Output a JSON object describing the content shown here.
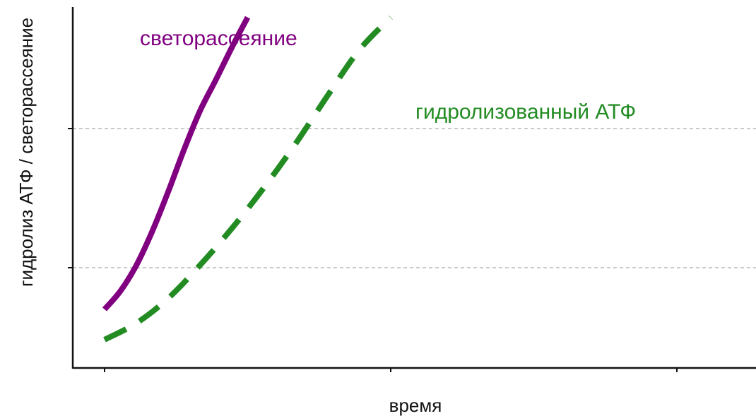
{
  "chart_data": {
    "type": "line",
    "title": "",
    "xlabel": "время",
    "ylabel": "гидролиз АТФ / светорассеяние",
    "grid": "horizontal dashed",
    "colors": {
      "light_scattering": "#800080",
      "hydrolyzed_atp": "#228B22",
      "axis": "#111111",
      "grid": "#aaaaaa"
    },
    "series": [
      {
        "name": "светорассеяние",
        "style": "solid",
        "x": [
          0,
          0.5,
          1,
          1.5,
          2,
          2.5,
          3,
          3.5,
          4,
          4.5
        ],
        "y": [
          0.4,
          0.6,
          0.88,
          1.25,
          1.68,
          2.14,
          2.56,
          2.9,
          3.25,
          3.58
        ]
      },
      {
        "name": "гидролизованный АТФ",
        "style": "dashed",
        "x": [
          0,
          1,
          2,
          3,
          4,
          5,
          6,
          7,
          8,
          9
        ],
        "y": [
          0.07,
          0.25,
          0.52,
          0.88,
          1.28,
          1.72,
          2.2,
          2.72,
          3.22,
          3.58
        ]
      }
    ]
  }
}
